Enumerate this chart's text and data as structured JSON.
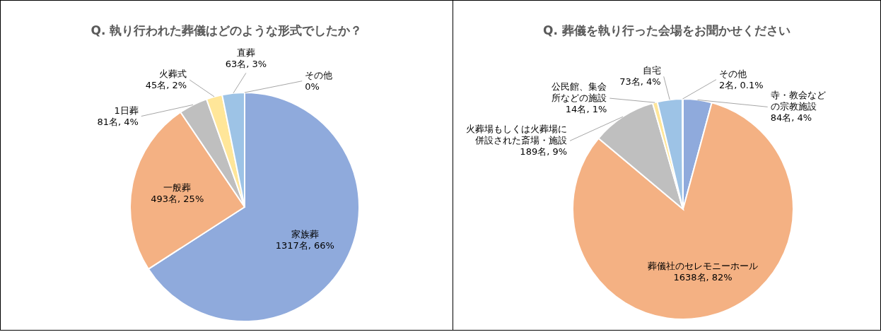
{
  "chart_data": [
    {
      "type": "pie",
      "title": "Q. 執り行われた葬儀はどのような形式でしたか？",
      "categories": [
        "家族葬",
        "一般葬",
        "1日葬",
        "火葬式",
        "直葬",
        "その他"
      ],
      "values": [
        1317,
        493,
        81,
        45,
        63,
        0
      ],
      "value_labels": [
        "1317名, 66%",
        "493名, 25%",
        "81名, 4%",
        "45名, 2%",
        "63名, 3%",
        "0%"
      ],
      "colors": [
        "#8faadc",
        "#f4b183",
        "#bfbfbf",
        "#ffe699",
        "#9dc3e6",
        "#2f5597"
      ]
    },
    {
      "type": "pie",
      "title": "Q. 葬儀を執り行った会場をお聞かせください",
      "categories": [
        "寺・教会などの宗教施設",
        "葬儀社のセレモニーホール",
        "火葬場もしくは火葬場に併設された斎場・施設",
        "公民館、集会所などの施設",
        "自宅",
        "その他"
      ],
      "values": [
        84,
        1638,
        189,
        14,
        73,
        2
      ],
      "value_labels": [
        "84名, 4%",
        "1638名, 82%",
        "189名, 9%",
        "14名, 1%",
        "73名, 4%",
        "2名, 0.1%"
      ],
      "colors": [
        "#8faadc",
        "#f4b183",
        "#bfbfbf",
        "#ffe699",
        "#9dc3e6",
        "#2f5597"
      ]
    }
  ]
}
